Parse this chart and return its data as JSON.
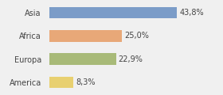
{
  "categories": [
    "Asia",
    "Africa",
    "Europa",
    "America"
  ],
  "values": [
    43.8,
    25.0,
    22.9,
    8.3
  ],
  "labels": [
    "43,8%",
    "25,0%",
    "22,9%",
    "8,3%"
  ],
  "bar_colors": [
    "#7B9CC8",
    "#E8A878",
    "#A8BA78",
    "#E8D070"
  ],
  "background_color": "#f0f0f0",
  "xlim": [
    0,
    58
  ],
  "bar_height": 0.5,
  "label_fontsize": 7,
  "tick_fontsize": 7
}
